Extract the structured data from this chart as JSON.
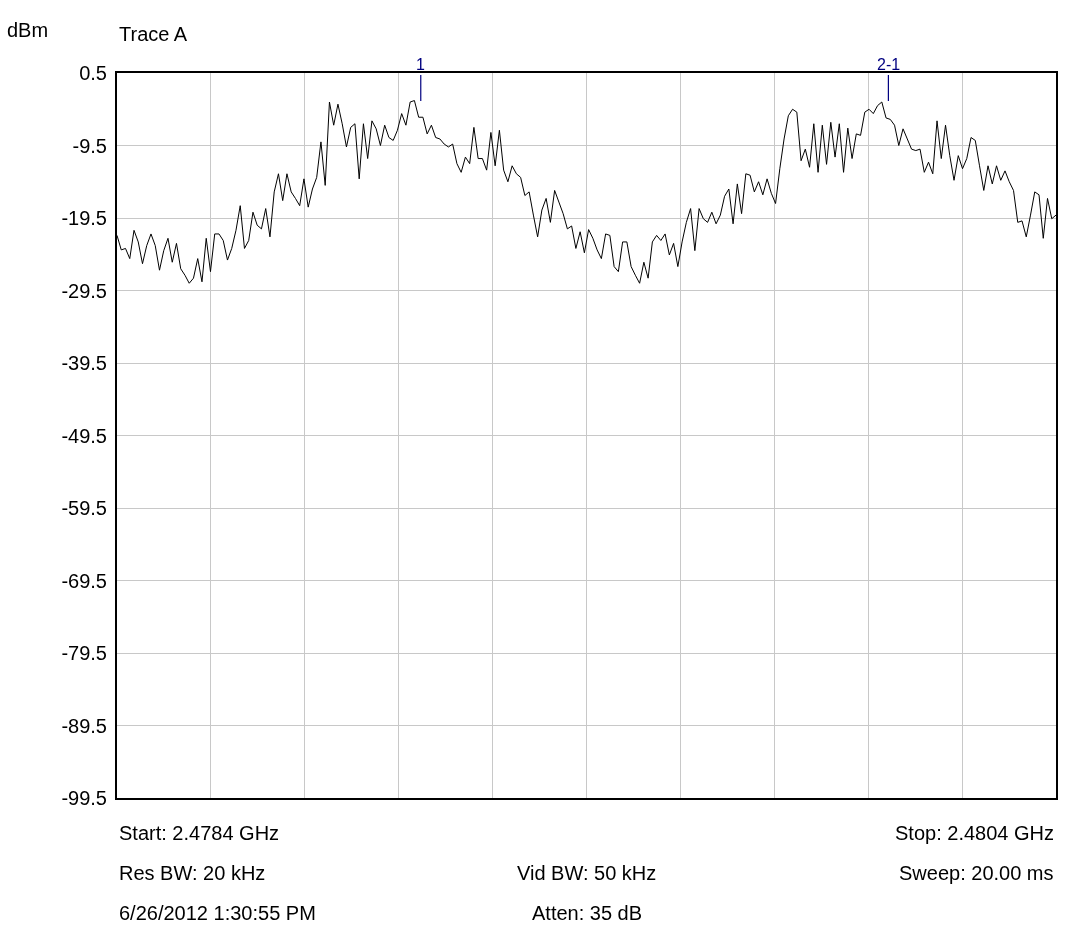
{
  "chart_data": {
    "type": "line",
    "title": "Trace A",
    "ylabel": "dBm",
    "categories": [
      null,
      null,
      null,
      null,
      null,
      null,
      null,
      null,
      null,
      null,
      null,
      null,
      null,
      null,
      null,
      null,
      null,
      null,
      null,
      null,
      null,
      null,
      null,
      null,
      null,
      null,
      null,
      null,
      null,
      null,
      null,
      null,
      null,
      null,
      null,
      null,
      null,
      null,
      null,
      null,
      null,
      null,
      null,
      null,
      null,
      null,
      null,
      null,
      null,
      null,
      null,
      null,
      null,
      null,
      null,
      null,
      null,
      null,
      null,
      null,
      null,
      null,
      null,
      null,
      null,
      null,
      null,
      null,
      null,
      null,
      null,
      null,
      null,
      null,
      null,
      null,
      null,
      null,
      null,
      null,
      null,
      null,
      null,
      null,
      null,
      null,
      null,
      null,
      null,
      null,
      null,
      null,
      null,
      null,
      null,
      null,
      null,
      null,
      null,
      null,
      null,
      null,
      null,
      null,
      null,
      null,
      null,
      null,
      null,
      null,
      null,
      null,
      null,
      null,
      null,
      null,
      null,
      null,
      null,
      null,
      null,
      null,
      null,
      null,
      null,
      null,
      null,
      null,
      null,
      null,
      null,
      null,
      null,
      null,
      null,
      null,
      null,
      null,
      null,
      null,
      null,
      null,
      null,
      null,
      null,
      null,
      null,
      null,
      null,
      null,
      null,
      null,
      null,
      null,
      null,
      null,
      null,
      null,
      null,
      null,
      null,
      null,
      null,
      null,
      null,
      null,
      null,
      null,
      null,
      null,
      null,
      null,
      null,
      null,
      null,
      null,
      null,
      null,
      null,
      null,
      null,
      null,
      null,
      null,
      null,
      null,
      null,
      null,
      null,
      null,
      null,
      null,
      null,
      null,
      null,
      null,
      null,
      null,
      null,
      null,
      null,
      null,
      null,
      null,
      null,
      null,
      null,
      null,
      null,
      null,
      null,
      null,
      null,
      null,
      null,
      null,
      null,
      null,
      null,
      null,
      null,
      null
    ],
    "ylim": [
      -99.5,
      0.5
    ],
    "yticks": [
      0.5,
      -9.5,
      -19.5,
      -29.5,
      -39.5,
      -49.5,
      -59.5,
      -69.5,
      -79.5,
      -89.5,
      -99.5
    ],
    "grid": true,
    "marker": "none",
    "line_style": "solid",
    "series": [
      {
        "color": "#000000",
        "values": [
          -21.9,
          -23.9,
          -23.7,
          -25.1,
          -21.2,
          -22.8,
          -25.8,
          -23.3,
          -21.7,
          -23.3,
          -26.7,
          -24.0,
          -22.3,
          -25.6,
          -23.0,
          -26.5,
          -27.4,
          -28.5,
          -27.8,
          -25.1,
          -28.3,
          -22.3,
          -26.9,
          -21.7,
          -21.7,
          -22.6,
          -25.3,
          -23.7,
          -21.2,
          -17.8,
          -23.7,
          -22.6,
          -18.7,
          -20.5,
          -21.0,
          -18.2,
          -22.1,
          -15.9,
          -13.4,
          -17.1,
          -13.4,
          -15.9,
          -16.8,
          -17.8,
          -14.1,
          -18.0,
          -15.5,
          -13.9,
          -9.0,
          -15.0,
          -3.5,
          -6.7,
          -3.8,
          -6.5,
          -9.7,
          -7.0,
          -6.5,
          -14.1,
          -6.5,
          -11.3,
          -6.1,
          -7.2,
          -9.5,
          -6.7,
          -8.4,
          -8.8,
          -7.4,
          -5.1,
          -6.7,
          -3.5,
          -3.3,
          -5.6,
          -5.6,
          -7.9,
          -6.7,
          -8.4,
          -8.6,
          -9.3,
          -9.7,
          -9.3,
          -12.0,
          -13.2,
          -11.1,
          -12.0,
          -7.0,
          -11.3,
          -11.3,
          -12.9,
          -7.7,
          -12.3,
          -7.4,
          -12.9,
          -14.5,
          -12.3,
          -13.4,
          -13.9,
          -16.4,
          -15.9,
          -19.1,
          -22.1,
          -18.4,
          -16.8,
          -20.1,
          -15.7,
          -17.3,
          -18.9,
          -21.0,
          -20.6,
          -23.7,
          -21.4,
          -24.3,
          -21.1,
          -22.3,
          -23.9,
          -25.1,
          -21.7,
          -21.9,
          -26.2,
          -26.9,
          -22.8,
          -22.8,
          -26.2,
          -27.4,
          -28.5,
          -25.6,
          -27.8,
          -22.8,
          -21.9,
          -22.6,
          -21.7,
          -24.6,
          -23.0,
          -26.2,
          -22.8,
          -20.1,
          -18.2,
          -24.0,
          -18.2,
          -19.6,
          -20.1,
          -18.7,
          -20.3,
          -19.1,
          -16.5,
          -15.5,
          -20.3,
          -14.8,
          -18.9,
          -13.4,
          -13.6,
          -15.9,
          -14.5,
          -16.3,
          -14.1,
          -16.1,
          -17.5,
          -12.7,
          -8.6,
          -5.4,
          -4.5,
          -4.9,
          -11.6,
          -10.0,
          -12.5,
          -6.5,
          -13.2,
          -6.7,
          -12.1,
          -6.3,
          -11.1,
          -6.5,
          -13.2,
          -7.1,
          -11.3,
          -7.9,
          -8.1,
          -4.9,
          -4.5,
          -5.1,
          -4.0,
          -3.5,
          -5.7,
          -5.9,
          -6.7,
          -9.5,
          -7.2,
          -8.6,
          -10.0,
          -10.2,
          -10.0,
          -13.2,
          -11.8,
          -13.4,
          -6.1,
          -11.3,
          -6.7,
          -10.9,
          -14.3,
          -10.9,
          -12.7,
          -11.3,
          -8.4,
          -8.8,
          -12.3,
          -15.7,
          -12.3,
          -14.8,
          -12.3,
          -14.3,
          -13.0,
          -14.5,
          -15.7,
          -20.1,
          -19.9,
          -22.1,
          -19.1,
          -15.9,
          -16.3,
          -22.3,
          -16.8,
          -19.6,
          -19.1
        ]
      }
    ],
    "annotations": [
      "1",
      "2-1",
      "Start: 2.4784 GHz",
      "Stop: 2.4804 GHz",
      "Res BW: 20 kHz",
      "Vid BW: 50 kHz",
      "Sweep: 20.00 ms",
      "6/26/2012 1:30:55 PM",
      "Atten: 35 dB"
    ]
  }
}
